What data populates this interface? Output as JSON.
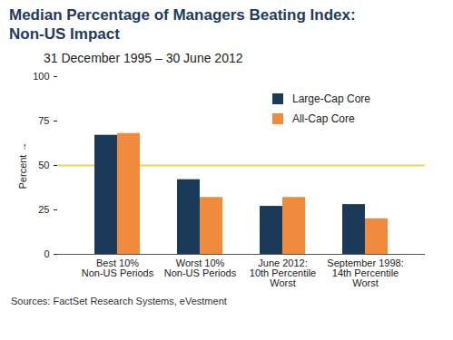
{
  "chart_data": {
    "type": "bar",
    "title": "Median Percentage of Managers Beating Index: Non-US Impact",
    "subtitle": "31 December 1995 – 30 June 2012",
    "ylabel": "Percent",
    "source": "Sources: FactSet Research Systems, eVestment",
    "categories": [
      "Best 10%\nNon-US Periods",
      "Worst 10%\nNon-US Periods",
      "June 2012:\n10th Percentile\nWorst",
      "September 1998:\n14th Percentile\nWorst"
    ],
    "series": [
      {
        "name": "Large-Cap Core",
        "color": "#1b3a5a",
        "values": [
          67,
          42,
          27,
          28
        ]
      },
      {
        "name": "All-Cap Core",
        "color": "#f08a3c",
        "values": [
          68,
          32,
          32,
          20
        ]
      }
    ],
    "reference_line": {
      "value": 50,
      "color": "#f5d44a"
    },
    "ylim": [
      0,
      100
    ],
    "yticks": [
      0,
      25,
      50,
      75,
      100
    ],
    "grid": false,
    "legend": "top-right",
    "data_labels": false
  }
}
